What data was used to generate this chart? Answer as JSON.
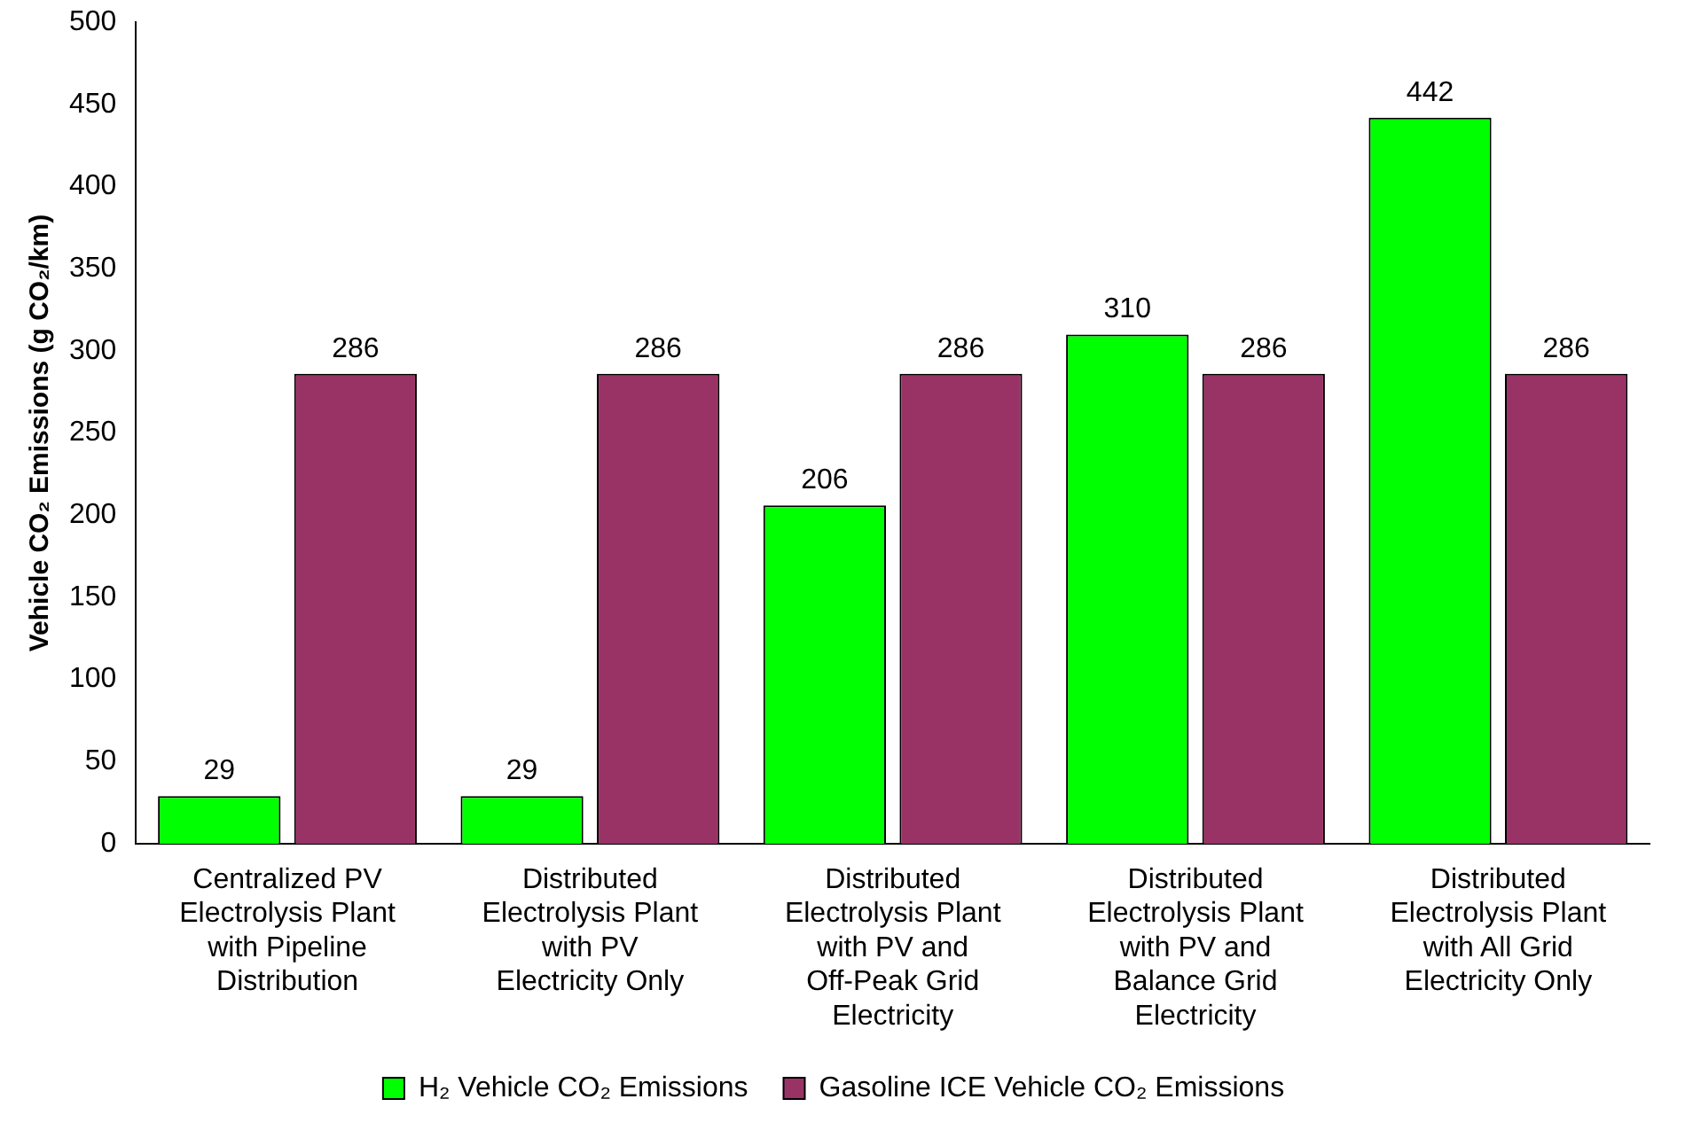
{
  "chart_data": {
    "type": "bar",
    "ylabel": "Vehicle CO₂ Emissions (g CO₂/km)",
    "categories": [
      "Centralized PV Electrolysis Plant with Pipeline Distribution",
      "Distributed Electrolysis Plant with PV Electricity Only",
      "Distributed Electrolysis Plant with PV and Off-Peak Grid Electricity",
      "Distributed Electrolysis Plant with PV and Balance Grid Electricity",
      "Distributed Electrolysis Plant with All Grid Electricity Only"
    ],
    "series": [
      {
        "name": "H₂ Vehicle CO₂ Emissions",
        "color": "#00ff00",
        "values": [
          29,
          29,
          206,
          310,
          442
        ]
      },
      {
        "name": "Gasoline ICE Vehicle CO₂ Emissions",
        "color": "#993366",
        "values": [
          286,
          286,
          286,
          286,
          286
        ]
      }
    ],
    "ylim": [
      0,
      500
    ],
    "yticks": [
      0,
      50,
      100,
      150,
      200,
      250,
      300,
      350,
      400,
      450,
      500
    ],
    "grid": false,
    "legend": "bottom",
    "data_labels": true
  }
}
